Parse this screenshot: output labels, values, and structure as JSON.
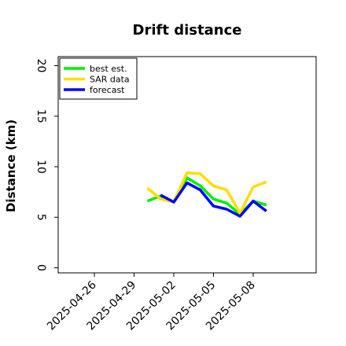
{
  "chart_data": {
    "type": "line",
    "title": "Drift distance",
    "xlabel": "",
    "ylabel": "Distance (km)",
    "ylim": [
      0,
      20
    ],
    "yticks": [
      0,
      5,
      10,
      15,
      20
    ],
    "xticks": [
      "2025-04-26",
      "2025-04-29",
      "2025-05-02",
      "2025-05-05",
      "2025-05-08"
    ],
    "xlim": [
      "2025-04-24",
      "2025-05-12"
    ],
    "grid": false,
    "legend_position": "top-left",
    "series": [
      {
        "name": "best est.",
        "color": "#00ee00",
        "x": [
          "2025-04-30",
          "2025-05-01",
          "2025-05-02",
          "2025-05-03",
          "2025-05-04",
          "2025-05-05",
          "2025-05-06",
          "2025-05-07",
          "2025-05-08",
          "2025-05-09"
        ],
        "y": [
          6.6,
          7.1,
          6.5,
          8.9,
          8.1,
          6.8,
          6.4,
          5.3,
          6.6,
          6.2
        ]
      },
      {
        "name": "SAR data",
        "color": "#ffdd00",
        "x": [
          "2025-04-30",
          "2025-05-01",
          "2025-05-02",
          "2025-05-03",
          "2025-05-04",
          "2025-05-05",
          "2025-05-06",
          "2025-05-07",
          "2025-05-08",
          "2025-05-09"
        ],
        "y": [
          7.9,
          6.8,
          6.5,
          9.4,
          9.3,
          8.1,
          7.7,
          5.4,
          8.0,
          8.5
        ]
      },
      {
        "name": "forecast",
        "color": "#0000ff",
        "x": [
          "2025-05-01",
          "2025-05-02",
          "2025-05-03",
          "2025-05-04",
          "2025-05-05",
          "2025-05-06",
          "2025-05-07",
          "2025-05-08",
          "2025-05-09"
        ],
        "y": [
          7.2,
          6.5,
          8.4,
          7.7,
          6.1,
          5.8,
          5.1,
          6.6,
          5.6
        ]
      }
    ]
  }
}
